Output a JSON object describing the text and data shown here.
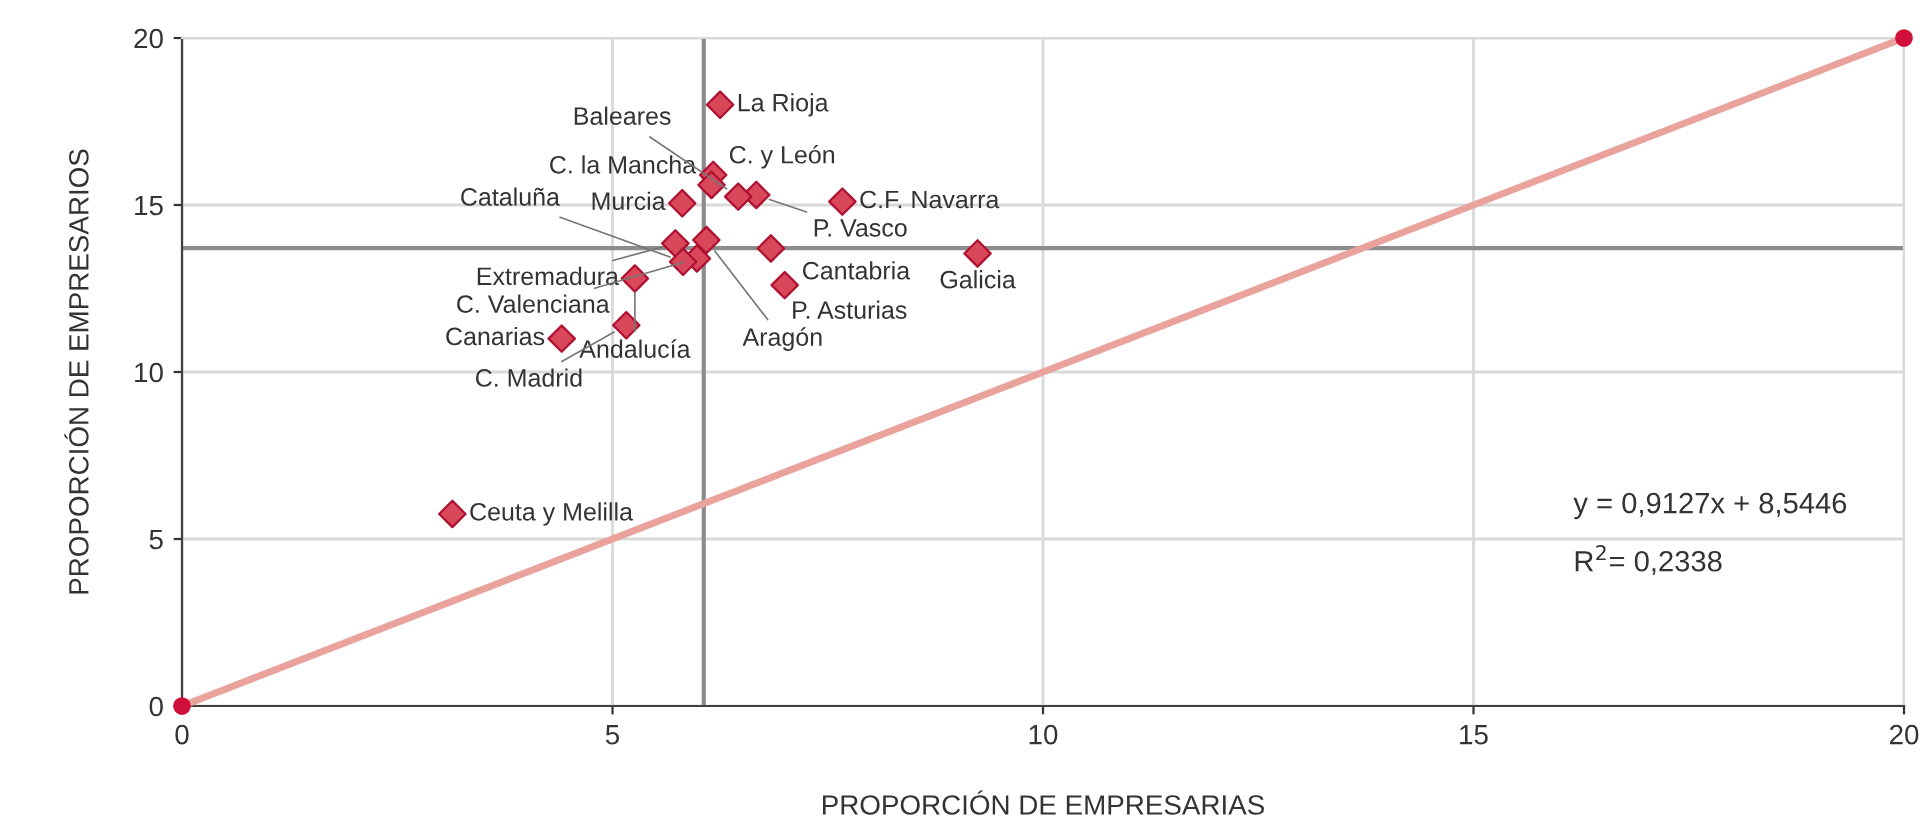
{
  "chart_data": {
    "type": "scatter",
    "xlabel": "PROPORCIÓN DE EMPRESARIAS",
    "ylabel": "PROPORCIÓN DE EMPRESARIOS",
    "xlim": [
      0,
      20
    ],
    "ylim": [
      0,
      20
    ],
    "xticks": [
      0,
      5,
      10,
      15,
      20
    ],
    "yticks": [
      0,
      5,
      10,
      15,
      20
    ],
    "grid": true,
    "series": [
      {
        "type": "line",
        "color": "#eaa39c",
        "x": [
          0,
          20
        ],
        "values": [
          0,
          20
        ],
        "marker": "none",
        "line_style": "solid"
      },
      {
        "type": "scatter",
        "color": "#d0103a",
        "x": [
          0,
          20
        ],
        "values": [
          0,
          20
        ],
        "marker": "circle"
      },
      {
        "color": "#d9475a",
        "marker": "diamond",
        "x": [
          6.25,
          6.17,
          6.15,
          5.81,
          6.67,
          6.46,
          7.67,
          5.73,
          6.09,
          6.84,
          9.24,
          5.98,
          5.82,
          5.26,
          7.0,
          5.16,
          4.41,
          3.14
        ],
        "values": [
          18.0,
          15.9,
          15.6,
          15.05,
          15.3,
          15.25,
          15.1,
          13.85,
          13.95,
          13.7,
          13.55,
          13.4,
          13.3,
          12.8,
          12.6,
          11.4,
          11.0,
          5.75
        ]
      }
    ],
    "ref_lines": [
      {
        "axis": "x",
        "value": 6.06,
        "color": "#8c8c8c"
      },
      {
        "axis": "y",
        "value": 13.71,
        "color": "#8c8c8c"
      }
    ],
    "annotations": [
      {
        "text": "La Rioja",
        "x": 6.25,
        "y": 18.0
      },
      {
        "text": "C. y León",
        "x": 6.17,
        "y": 15.9
      },
      {
        "text": "C. la Mancha",
        "x": 6.15,
        "y": 15.6
      },
      {
        "text": "Murcia",
        "x": 5.81,
        "y": 15.05
      },
      {
        "text": "P. Vasco",
        "x": 6.67,
        "y": 15.3
      },
      {
        "text": "Baleares",
        "x": 6.46,
        "y": 15.25
      },
      {
        "text": "C.F. Navarra",
        "x": 7.67,
        "y": 15.1
      },
      {
        "text": "Extremadura",
        "x": 5.73,
        "y": 13.85
      },
      {
        "text": "Aragón",
        "x": 6.09,
        "y": 13.95
      },
      {
        "text": "Cantabria",
        "x": 6.84,
        "y": 13.7
      },
      {
        "text": "Galicia",
        "x": 9.24,
        "y": 13.55
      },
      {
        "text": "C. Valenciana",
        "x": 5.98,
        "y": 13.4
      },
      {
        "text": "Cataluña",
        "x": 5.82,
        "y": 13.3
      },
      {
        "text": "Andalucía",
        "x": 5.26,
        "y": 12.8
      },
      {
        "text": "P. Asturias",
        "x": 7.0,
        "y": 12.6
      },
      {
        "text": "C. Madrid",
        "x": 5.16,
        "y": 11.4
      },
      {
        "text": "Canarias",
        "x": 4.41,
        "y": 11.0
      },
      {
        "text": "Ceuta y Melilla",
        "x": 3.14,
        "y": 5.75
      },
      "y = 0,9127x + 8,5446",
      "R$^{2}$= 0,2338"
    ]
  }
}
